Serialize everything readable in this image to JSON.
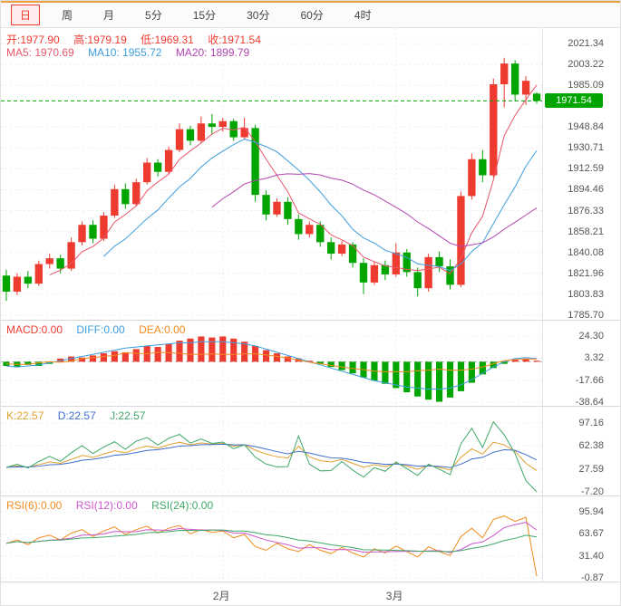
{
  "toolbar": {
    "tabs": [
      {
        "label": "日",
        "active": true
      },
      {
        "label": "周",
        "active": false
      },
      {
        "label": "月",
        "active": false
      },
      {
        "label": "5分",
        "active": false
      },
      {
        "label": "15分",
        "active": false
      },
      {
        "label": "30分",
        "active": false
      },
      {
        "label": "60分",
        "active": false
      },
      {
        "label": "4时",
        "active": false
      }
    ]
  },
  "ohlc": {
    "open": "开:1977.90",
    "high": "高:1979.19",
    "low": "低:1969.31",
    "close": "收:1971.54"
  },
  "ma": {
    "ma5": "MA5: 1970.69",
    "ma10": "MA10: 1955.72",
    "ma20": "MA20: 1899.79"
  },
  "panels": {
    "macd": {
      "t1": "MACD:0.00",
      "t2": "DIFF:0.00",
      "t3": "DEA:0.00"
    },
    "kdj": {
      "t1": "K:22.57",
      "t2": "D:22.57",
      "t3": "J:22.57"
    },
    "rsi": {
      "t1": "RSI(6):0.00",
      "t2": "RSI(12):0.00",
      "t3": "RSI(24):0.00"
    }
  },
  "colors": {
    "up": "#ee3b30",
    "down": "#00a500",
    "ma5": "#e8566a",
    "ma10": "#3e9ede",
    "ma20": "#b344b0",
    "diff": "#3e9ede",
    "dea": "#f08c1e",
    "k": "#e0a030",
    "d": "#3e6ed0",
    "j": "#3fa868",
    "rsi6": "#f08c1e",
    "rsi12": "#cc55cc",
    "rsi24": "#3fa868",
    "price_line": "#00a500",
    "grid": "#ededed",
    "axis_text": "#555"
  },
  "chart_data": {
    "type": "candlestick",
    "legend": [
      "MA5",
      "MA10",
      "MA20"
    ],
    "x_axis_labels": [
      {
        "label": "2月",
        "index": 20
      },
      {
        "label": "3月",
        "index": 36
      }
    ],
    "price_axis_labels": [
      2021.34,
      2003.22,
      1985.09,
      1948.84,
      1930.71,
      1912.59,
      1894.46,
      1876.33,
      1858.21,
      1840.08,
      1821.96,
      1803.83,
      1785.7
    ],
    "current_price": 1971.54,
    "last_bar": {
      "open": 1977.9,
      "high": 1979.19,
      "low": 1969.31,
      "close": 1971.54
    },
    "candles": [
      [
        1820,
        1825,
        1798,
        1806
      ],
      [
        1806,
        1822,
        1803,
        1819
      ],
      [
        1819,
        1824,
        1809,
        1813
      ],
      [
        1813,
        1833,
        1811,
        1830
      ],
      [
        1830,
        1839,
        1826,
        1835
      ],
      [
        1835,
        1838,
        1822,
        1826
      ],
      [
        1826,
        1853,
        1824,
        1849
      ],
      [
        1849,
        1867,
        1846,
        1864
      ],
      [
        1864,
        1868,
        1848,
        1852
      ],
      [
        1852,
        1875,
        1850,
        1872
      ],
      [
        1872,
        1899,
        1870,
        1895
      ],
      [
        1895,
        1900,
        1878,
        1882
      ],
      [
        1882,
        1904,
        1880,
        1901
      ],
      [
        1901,
        1922,
        1899,
        1918
      ],
      [
        1918,
        1921,
        1906,
        1910
      ],
      [
        1910,
        1932,
        1908,
        1929
      ],
      [
        1929,
        1952,
        1927,
        1947
      ],
      [
        1947,
        1950,
        1933,
        1937
      ],
      [
        1937,
        1958,
        1935,
        1952
      ],
      [
        1952,
        1960,
        1942,
        1949
      ],
      [
        1949,
        1957,
        1945,
        1954
      ],
      [
        1954,
        1956,
        1937,
        1940
      ],
      [
        1940,
        1957,
        1938,
        1948
      ],
      [
        1948,
        1951,
        1884,
        1890
      ],
      [
        1890,
        1894,
        1868,
        1873
      ],
      [
        1873,
        1887,
        1871,
        1884
      ],
      [
        1884,
        1888,
        1864,
        1869
      ],
      [
        1869,
        1873,
        1851,
        1856
      ],
      [
        1856,
        1867,
        1853,
        1864
      ],
      [
        1864,
        1867,
        1845,
        1849
      ],
      [
        1849,
        1853,
        1834,
        1839
      ],
      [
        1839,
        1850,
        1837,
        1847
      ],
      [
        1847,
        1849,
        1827,
        1831
      ],
      [
        1831,
        1835,
        1804,
        1814
      ],
      [
        1814,
        1832,
        1812,
        1829
      ],
      [
        1829,
        1833,
        1816,
        1821
      ],
      [
        1821,
        1848,
        1819,
        1840
      ],
      [
        1840,
        1843,
        1819,
        1823
      ],
      [
        1823,
        1827,
        1802,
        1809
      ],
      [
        1809,
        1839,
        1806,
        1836
      ],
      [
        1836,
        1841,
        1823,
        1828
      ],
      [
        1828,
        1834,
        1808,
        1812
      ],
      [
        1812,
        1893,
        1810,
        1889
      ],
      [
        1889,
        1926,
        1886,
        1921
      ],
      [
        1921,
        1929,
        1901,
        1907
      ],
      [
        1907,
        1991,
        1905,
        1986
      ],
      [
        1986,
        2009,
        1966,
        2004
      ],
      [
        2004,
        2007,
        1971,
        1977
      ],
      [
        1977,
        1993,
        1968,
        1989
      ],
      [
        1977.9,
        1979.19,
        1969.31,
        1971.54
      ]
    ],
    "ma_periods": [
      5,
      10,
      20
    ],
    "macd": {
      "axis": [
        24.3,
        3.32,
        -17.66,
        -38.64
      ],
      "diff": [
        -4,
        -5,
        -4,
        -3,
        -1,
        1,
        3,
        5,
        7,
        9,
        11,
        13,
        14,
        15,
        16,
        17,
        18,
        18,
        19,
        19,
        19,
        18,
        17,
        15,
        12,
        9,
        6,
        3,
        0,
        -3,
        -6,
        -9,
        -12,
        -15,
        -18,
        -20,
        -22,
        -24,
        -25,
        -26,
        -26,
        -25,
        -22,
        -17,
        -11,
        -5,
        0,
        3,
        4,
        3
      ],
      "hist": [
        -4,
        -5,
        -3,
        -4,
        -2,
        3,
        5,
        4,
        6,
        8,
        10,
        9,
        12,
        15,
        14,
        17,
        20,
        22,
        24,
        23,
        24,
        22,
        19,
        15,
        11,
        8,
        5,
        3,
        1,
        -2,
        -5,
        -8,
        -11,
        -15,
        -18,
        -21,
        -25,
        -29,
        -33,
        -36,
        -38,
        -34,
        -28,
        -20,
        -12,
        -6,
        -2,
        2,
        3,
        1
      ]
    },
    "kdj": {
      "axis": [
        97.16,
        62.38,
        27.59,
        -7.2
      ],
      "k": [
        30,
        32,
        30,
        34,
        38,
        36,
        42,
        48,
        45,
        50,
        55,
        52,
        58,
        62,
        59,
        64,
        68,
        64,
        67,
        65,
        66,
        62,
        64,
        56,
        50,
        46,
        44,
        62,
        46,
        40,
        38,
        42,
        36,
        30,
        34,
        31,
        36,
        32,
        27,
        33,
        30,
        26,
        45,
        58,
        50,
        68,
        64,
        54,
        36,
        25
      ]
    },
    "rsi": {
      "axis": [
        95.94,
        63.67,
        31.4,
        -0.87
      ],
      "rsi6": [
        50,
        55,
        48,
        58,
        62,
        55,
        65,
        70,
        60,
        68,
        74,
        63,
        70,
        75,
        65,
        72,
        76,
        64,
        70,
        66,
        68,
        58,
        63,
        45,
        40,
        50,
        42,
        38,
        48,
        40,
        35,
        44,
        36,
        30,
        42,
        36,
        46,
        38,
        30,
        45,
        38,
        32,
        60,
        72,
        58,
        85,
        90,
        82,
        88,
        2
      ]
    }
  }
}
